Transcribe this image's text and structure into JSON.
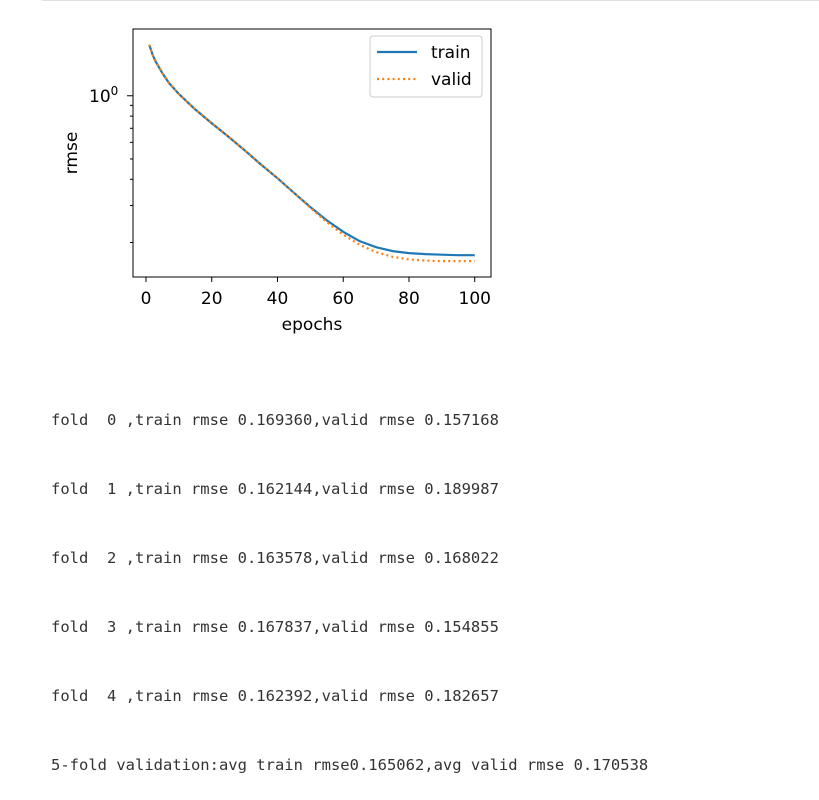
{
  "chart_data": {
    "type": "line",
    "xlabel": "epochs",
    "ylabel": "rmse",
    "xlim": [
      -3.95,
      104.95
    ],
    "ylim": [
      0.137,
      2.08
    ],
    "yscale": "log",
    "xticks": [
      0,
      20,
      40,
      60,
      80,
      100
    ],
    "xtick_labels": [
      "0",
      "20",
      "40",
      "60",
      "80",
      "100"
    ],
    "yticks_major": [
      1.0
    ],
    "ytick_major_base": "10",
    "ytick_major_exp": "0",
    "yticks_minor": [
      0.2,
      0.3,
      0.4,
      0.5,
      0.6,
      0.7,
      0.8,
      0.9
    ],
    "grid": false,
    "legend_position": "top-right",
    "series": [
      {
        "name": "train",
        "color": "#1f77b4",
        "style": "solid",
        "x": [
          1,
          2,
          3,
          5,
          7,
          10,
          15,
          20,
          25,
          30,
          35,
          40,
          45,
          50,
          55,
          60,
          65,
          70,
          75,
          80,
          85,
          90,
          95,
          100
        ],
        "y": [
          1.75,
          1.57,
          1.45,
          1.28,
          1.15,
          1.02,
          0.86,
          0.74,
          0.64,
          0.55,
          0.47,
          0.405,
          0.345,
          0.295,
          0.255,
          0.225,
          0.203,
          0.19,
          0.182,
          0.178,
          0.176,
          0.175,
          0.174,
          0.174
        ]
      },
      {
        "name": "valid",
        "color": "#ff7f0e",
        "style": "dotted",
        "x": [
          1,
          2,
          3,
          5,
          7,
          10,
          15,
          20,
          25,
          30,
          35,
          40,
          45,
          50,
          55,
          60,
          65,
          70,
          75,
          80,
          85,
          90,
          95,
          100
        ],
        "y": [
          1.75,
          1.57,
          1.45,
          1.28,
          1.15,
          1.02,
          0.86,
          0.74,
          0.64,
          0.55,
          0.47,
          0.405,
          0.345,
          0.293,
          0.25,
          0.218,
          0.195,
          0.18,
          0.171,
          0.166,
          0.164,
          0.163,
          0.163,
          0.163
        ]
      }
    ]
  },
  "output": {
    "lines": [
      "fold  0 ,train rmse 0.169360,valid rmse 0.157168",
      "fold  1 ,train rmse 0.162144,valid rmse 0.189987",
      "fold  2 ,train rmse 0.163578,valid rmse 0.168022",
      "fold  3 ,train rmse 0.167837,valid rmse 0.154855",
      "fold  4 ,train rmse 0.162392,valid rmse 0.182657",
      "5-fold validation:avg train rmse0.165062,avg valid rmse 0.170538"
    ]
  }
}
